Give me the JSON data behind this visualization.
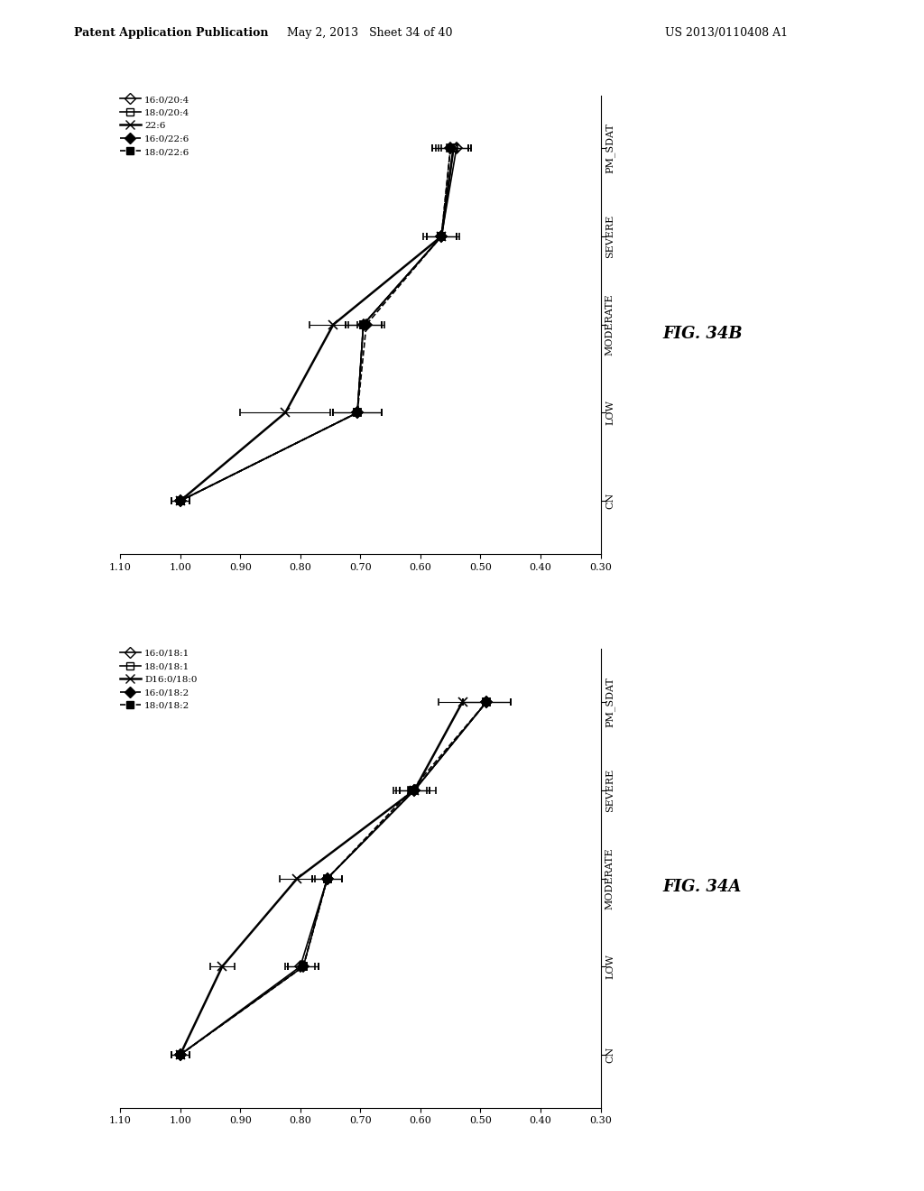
{
  "header_left": "Patent Application Publication",
  "header_mid": "May 2, 2013   Sheet 34 of 40",
  "header_right": "US 2013/0110408 A1",
  "fig_label_A": "FIG. 34A",
  "fig_label_B": "FIG. 34B",
  "x_categories": [
    "CN",
    "LOW",
    "MODERATE",
    "SEVERE",
    "PM_SDAT"
  ],
  "x_positions": [
    0,
    1,
    2,
    3,
    4
  ],
  "xlim": [
    1.1,
    0.3
  ],
  "xticks": [
    1.1,
    1.0,
    0.9,
    0.8,
    0.7,
    0.6,
    0.5,
    0.4,
    0.3
  ],
  "chart_A": {
    "series": [
      {
        "label": "16:0/18:1",
        "marker": "D",
        "fillstyle": "none",
        "linestyle": "-",
        "lw": 1.2,
        "y": [
          1.0,
          0.8,
          0.755,
          0.61,
          0.49
        ],
        "yerr": [
          0.015,
          0.025,
          0.025,
          0.025,
          0.04
        ]
      },
      {
        "label": "18:0/18:1",
        "marker": "s",
        "fillstyle": "none",
        "linestyle": "-",
        "lw": 1.2,
        "y": [
          1.0,
          0.795,
          0.755,
          0.61,
          0.49
        ],
        "yerr": [
          0.015,
          0.025,
          0.025,
          0.025,
          0.04
        ]
      },
      {
        "label": "D16:0/18:0",
        "marker": "x",
        "fillstyle": "full",
        "linestyle": "-",
        "lw": 1.8,
        "y": [
          1.0,
          0.93,
          0.805,
          0.61,
          0.53
        ],
        "yerr": [
          0.015,
          0.02,
          0.03,
          0.035,
          0.04
        ]
      },
      {
        "label": "16:0/18:2",
        "marker": "D",
        "fillstyle": "full",
        "linestyle": "--",
        "lw": 1.2,
        "y": [
          1.0,
          0.795,
          0.755,
          0.61,
          0.49
        ],
        "yerr": [
          0.015,
          0.025,
          0.025,
          0.025,
          0.04
        ]
      },
      {
        "label": "18:0/18:2",
        "marker": "s",
        "fillstyle": "full",
        "linestyle": "--",
        "lw": 1.2,
        "y": [
          1.0,
          0.795,
          0.755,
          0.615,
          0.49
        ],
        "yerr": [
          0.015,
          0.025,
          0.025,
          0.025,
          0.04
        ]
      }
    ]
  },
  "chart_B": {
    "series": [
      {
        "label": "16:0/20:4",
        "marker": "D",
        "fillstyle": "none",
        "linestyle": "-",
        "lw": 1.2,
        "y": [
          1.0,
          0.705,
          0.695,
          0.565,
          0.54
        ],
        "yerr": [
          0.015,
          0.04,
          0.03,
          0.025,
          0.025
        ]
      },
      {
        "label": "18:0/20:4",
        "marker": "s",
        "fillstyle": "none",
        "linestyle": "-",
        "lw": 1.2,
        "y": [
          1.0,
          0.705,
          0.695,
          0.565,
          0.545
        ],
        "yerr": [
          0.015,
          0.04,
          0.03,
          0.025,
          0.03
        ]
      },
      {
        "label": "22:6",
        "marker": "x",
        "fillstyle": "full",
        "linestyle": "-",
        "lw": 1.8,
        "y": [
          1.0,
          0.825,
          0.745,
          0.565,
          0.545
        ],
        "yerr": [
          0.015,
          0.075,
          0.04,
          0.03,
          0.025
        ]
      },
      {
        "label": "16:0/22:6",
        "marker": "D",
        "fillstyle": "full",
        "linestyle": "--",
        "lw": 1.2,
        "y": [
          1.0,
          0.705,
          0.69,
          0.565,
          0.55
        ],
        "yerr": [
          0.015,
          0.04,
          0.03,
          0.025,
          0.03
        ]
      },
      {
        "label": "18:0/22:6",
        "marker": "s",
        "fillstyle": "full",
        "linestyle": "--",
        "lw": 1.2,
        "y": [
          1.0,
          0.705,
          0.695,
          0.565,
          0.55
        ],
        "yerr": [
          0.015,
          0.04,
          0.03,
          0.025,
          0.03
        ]
      }
    ]
  },
  "background_color": "#ffffff"
}
